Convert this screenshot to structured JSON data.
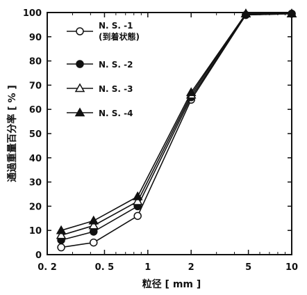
{
  "chart_data": {
    "type": "line",
    "xscale": "log",
    "xlim": [
      0.2,
      10
    ],
    "ylim": [
      0,
      100
    ],
    "x_ticks": [
      0.2,
      0.5,
      1,
      2,
      5,
      10
    ],
    "x_tick_labels": [
      "0. 2",
      "0. 5",
      "1",
      "2",
      "5",
      "10"
    ],
    "y_ticks": [
      0,
      10,
      20,
      30,
      40,
      50,
      60,
      70,
      80,
      90,
      100
    ],
    "y_tick_labels": [
      "0",
      "10",
      "20",
      "30",
      "40",
      "50",
      "60",
      "70",
      "80",
      "90",
      "100"
    ],
    "xlabel": "粒径 [ mm ]",
    "ylabel": "通過重量百分率 [ % ]",
    "grid": false,
    "legend_position": "top-left",
    "x": [
      0.25,
      0.42,
      0.85,
      2,
      4.8,
      10
    ],
    "series": [
      {
        "name": "N. S. -1",
        "name_line2": "(到着状態)",
        "marker": "open-circle",
        "values": [
          3,
          5,
          16,
          64,
          99,
          99.5
        ]
      },
      {
        "name": "N. S. -2",
        "name_line2": "",
        "marker": "filled-circle",
        "values": [
          6,
          9.5,
          20,
          65,
          99,
          99.5
        ]
      },
      {
        "name": "N. S. -3",
        "name_line2": "",
        "marker": "open-triangle",
        "values": [
          8,
          12,
          22,
          66,
          99.5,
          99.5
        ]
      },
      {
        "name": "N. S. -4",
        "name_line2": "",
        "marker": "filled-triangle",
        "values": [
          10,
          14,
          24,
          67,
          99.5,
          99.5
        ]
      }
    ]
  }
}
